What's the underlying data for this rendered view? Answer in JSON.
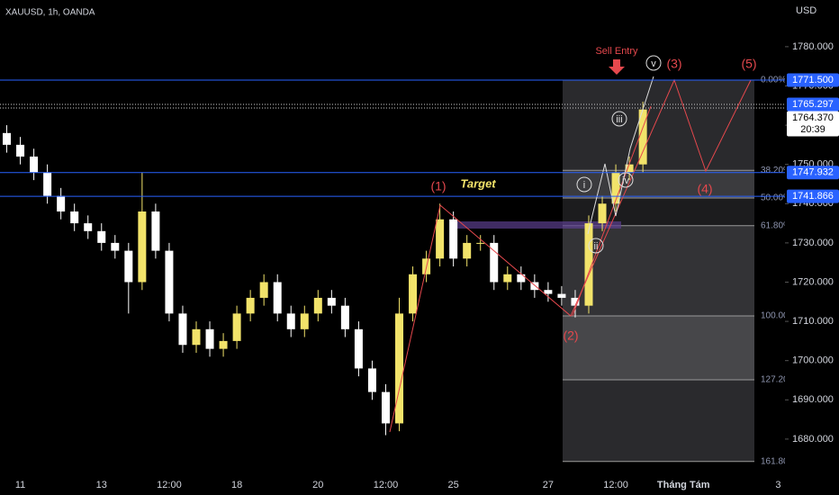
{
  "chart_data": {
    "type": "candlestick",
    "title": "XAUUSD, 1h, OANDA",
    "currency": "USD",
    "up_color": "#f2e36a",
    "down_color": "#ffffff",
    "categories": [
      null,
      "11",
      null,
      null,
      null,
      null,
      null,
      "13",
      null,
      null,
      null,
      null,
      "12:00",
      null,
      null,
      null,
      null,
      "18",
      null,
      null,
      null,
      null,
      null,
      "20",
      null,
      null,
      null,
      null,
      "12:00",
      null,
      null,
      null,
      null,
      "25",
      null,
      null,
      null,
      null,
      null,
      null,
      "27",
      null,
      null,
      null,
      null,
      "12:00",
      null,
      null,
      null,
      null,
      "Tháng Tám",
      null,
      null,
      null,
      null,
      null,
      null,
      "3"
    ],
    "open": [
      1758,
      1755,
      1752,
      1748,
      1742,
      1738,
      1735,
      1733,
      1730,
      1728,
      1720,
      1738,
      1728,
      1712,
      1704,
      1708,
      1703,
      1705,
      1712,
      1716,
      1720,
      1712,
      1708,
      1712,
      1716,
      1714,
      1708,
      1698,
      1692,
      1684,
      1712,
      1722,
      1726,
      1736,
      1726,
      1730,
      1730,
      1720,
      1722,
      1720,
      1718,
      1717,
      1716,
      1714,
      1735,
      1740,
      1748,
      1750,
      null,
      null,
      null,
      null,
      null,
      null,
      null,
      null,
      null,
      null
    ],
    "high": [
      1760,
      1757,
      1754,
      1750,
      1744,
      1740,
      1737,
      1735,
      1732,
      1730,
      1748,
      1740,
      1730,
      1714,
      1710,
      1710,
      1707,
      1714,
      1718,
      1722,
      1722,
      1714,
      1714,
      1718,
      1718,
      1716,
      1710,
      1700,
      1694,
      1716,
      1724,
      1728,
      1740,
      1738,
      1732,
      1732,
      1732,
      1724,
      1724,
      1722,
      1720,
      1719,
      1718,
      1737,
      1742,
      1750,
      1752,
      1766,
      null,
      null,
      null,
      null,
      null,
      null,
      null,
      null,
      null,
      null
    ],
    "low": [
      1753,
      1750,
      1746,
      1740,
      1736,
      1733,
      1731,
      1728,
      1726,
      1712,
      1718,
      1726,
      1710,
      1702,
      1702,
      1701,
      1701,
      1703,
      1710,
      1714,
      1710,
      1706,
      1706,
      1710,
      1712,
      1706,
      1696,
      1690,
      1681,
      1682,
      1710,
      1720,
      1724,
      1724,
      1724,
      1728,
      1718,
      1718,
      1718,
      1716,
      1715,
      1714,
      1711,
      1712,
      1733,
      1738,
      1746,
      1748,
      null,
      null,
      null,
      null,
      null,
      null,
      null,
      null,
      null,
      null
    ],
    "close": [
      1755,
      1752,
      1748,
      1742,
      1738,
      1735,
      1733,
      1730,
      1728,
      1720,
      1738,
      1728,
      1712,
      1704,
      1708,
      1703,
      1705,
      1712,
      1716,
      1720,
      1712,
      1708,
      1712,
      1716,
      1714,
      1708,
      1698,
      1692,
      1684,
      1712,
      1722,
      1726,
      1736,
      1726,
      1730,
      1730,
      1720,
      1722,
      1720,
      1718,
      1717,
      1716,
      1714,
      1735,
      1740,
      1748,
      1750,
      1764,
      null,
      null,
      null,
      null,
      null,
      null,
      null,
      null,
      null,
      null
    ],
    "ylim": [
      1670.8,
      1791.9
    ],
    "yticks": [
      {
        "value": 1680,
        "label": "1680.000"
      },
      {
        "value": 1690,
        "label": "1690.000"
      },
      {
        "value": 1700,
        "label": "1700.000"
      },
      {
        "value": 1710,
        "label": "1710.000"
      },
      {
        "value": 1720,
        "label": "1720.000"
      },
      {
        "value": 1730,
        "label": "1730.000"
      },
      {
        "value": 1740,
        "label": "1740.000"
      },
      {
        "value": 1750,
        "label": "1750.000"
      },
      {
        "value": 1760,
        "label": "1760.000"
      },
      {
        "value": 1770,
        "label": "1770.000"
      },
      {
        "value": 1780,
        "label": "1780.000"
      }
    ],
    "price_lines": [
      {
        "value": 1771.5,
        "label": "1771.500"
      },
      {
        "value": 1765.297,
        "label": "1765.297"
      },
      {
        "value": 1747.932,
        "label": "1747.932"
      },
      {
        "value": 1741.866,
        "label": "1741.866"
      }
    ],
    "current_price": {
      "value": 1764.37,
      "label": "1764.370"
    },
    "countdown": "20:39",
    "fib_levels": [
      {
        "value": 1771.5,
        "label": "0.00%"
      },
      {
        "value": 1748.5,
        "label": "38.20%"
      },
      {
        "value": 1741.45,
        "label": "50.00%"
      },
      {
        "value": 1734.4,
        "label": "61.80%"
      },
      {
        "value": 1711.4,
        "label": "100.00%"
      },
      {
        "value": 1695.1,
        "label": "127.20%"
      },
      {
        "value": 1674.3,
        "label": "161.80%"
      }
    ],
    "annotations": {
      "w1": "(1)",
      "w2": "(2)",
      "w3": "(3)",
      "w4": "(4)",
      "w5": "(5)",
      "target": "Target",
      "sell": "Sell Entry",
      "i": "i",
      "ii": "ii",
      "iii": "iii",
      "iv": "iv",
      "v": "v"
    }
  }
}
